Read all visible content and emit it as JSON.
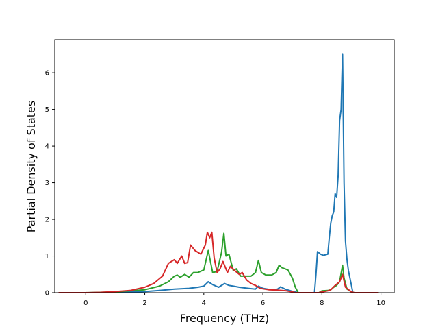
{
  "chart_data": {
    "type": "line",
    "title": "",
    "xlabel": "Frequency (THz)",
    "ylabel": "Partial Density of States",
    "xlim": [
      -1.05,
      10.45
    ],
    "ylim": [
      0,
      6.9
    ],
    "xticks": [
      0,
      2,
      4,
      6,
      8,
      10
    ],
    "yticks": [
      0,
      1,
      2,
      3,
      4,
      5,
      6
    ],
    "xtick_labels": [
      "0",
      "2",
      "4",
      "6",
      "8",
      "10"
    ],
    "ytick_labels": [
      "0",
      "1",
      "2",
      "3",
      "4",
      "5",
      "6"
    ],
    "grid": false,
    "legend": "none",
    "series": [
      {
        "color": "#1f77b4",
        "points": [
          [
            -0.9,
            0
          ],
          [
            0,
            0
          ],
          [
            1,
            0.01
          ],
          [
            2,
            0.03
          ],
          [
            2.5,
            0.06
          ],
          [
            3,
            0.1
          ],
          [
            3.5,
            0.12
          ],
          [
            3.8,
            0.15
          ],
          [
            4,
            0.18
          ],
          [
            4.15,
            0.3
          ],
          [
            4.3,
            0.22
          ],
          [
            4.5,
            0.15
          ],
          [
            4.7,
            0.25
          ],
          [
            4.85,
            0.2
          ],
          [
            5,
            0.18
          ],
          [
            5.2,
            0.15
          ],
          [
            5.5,
            0.12
          ],
          [
            5.75,
            0.1
          ],
          [
            5.85,
            0.18
          ],
          [
            6,
            0.12
          ],
          [
            6.3,
            0.08
          ],
          [
            6.5,
            0.1
          ],
          [
            6.6,
            0.16
          ],
          [
            6.75,
            0.1
          ],
          [
            7,
            0.04
          ],
          [
            7.2,
            0
          ],
          [
            7.75,
            0
          ],
          [
            7.8,
            0.5
          ],
          [
            7.85,
            1.12
          ],
          [
            7.95,
            1.05
          ],
          [
            8.05,
            1.02
          ],
          [
            8.2,
            1.05
          ],
          [
            8.25,
            1.5
          ],
          [
            8.3,
            1.9
          ],
          [
            8.35,
            2.1
          ],
          [
            8.4,
            2.2
          ],
          [
            8.45,
            2.7
          ],
          [
            8.5,
            2.6
          ],
          [
            8.55,
            3.2
          ],
          [
            8.6,
            4.7
          ],
          [
            8.65,
            5.0
          ],
          [
            8.7,
            6.5
          ],
          [
            8.75,
            3.0
          ],
          [
            8.8,
            1.4
          ],
          [
            8.85,
            0.9
          ],
          [
            8.9,
            0.6
          ],
          [
            9,
            0.2
          ],
          [
            9.05,
            0
          ],
          [
            9.9,
            0
          ]
        ]
      },
      {
        "color": "#2ca02c",
        "points": [
          [
            -0.9,
            0
          ],
          [
            0,
            0
          ],
          [
            1,
            0.02
          ],
          [
            2,
            0.08
          ],
          [
            2.5,
            0.18
          ],
          [
            2.8,
            0.3
          ],
          [
            3,
            0.45
          ],
          [
            3.1,
            0.48
          ],
          [
            3.2,
            0.42
          ],
          [
            3.35,
            0.5
          ],
          [
            3.5,
            0.42
          ],
          [
            3.65,
            0.55
          ],
          [
            3.8,
            0.55
          ],
          [
            4,
            0.62
          ],
          [
            4.15,
            1.15
          ],
          [
            4.3,
            0.55
          ],
          [
            4.45,
            0.58
          ],
          [
            4.6,
            1.1
          ],
          [
            4.68,
            1.62
          ],
          [
            4.75,
            1.0
          ],
          [
            4.85,
            1.05
          ],
          [
            5,
            0.6
          ],
          [
            5.1,
            0.65
          ],
          [
            5.25,
            0.45
          ],
          [
            5.4,
            0.45
          ],
          [
            5.6,
            0.45
          ],
          [
            5.75,
            0.55
          ],
          [
            5.85,
            0.88
          ],
          [
            5.95,
            0.55
          ],
          [
            6.1,
            0.48
          ],
          [
            6.3,
            0.48
          ],
          [
            6.45,
            0.55
          ],
          [
            6.55,
            0.75
          ],
          [
            6.65,
            0.68
          ],
          [
            6.85,
            0.62
          ],
          [
            7.0,
            0.4
          ],
          [
            7.1,
            0.15
          ],
          [
            7.2,
            0
          ],
          [
            7.9,
            0
          ],
          [
            8.0,
            0.05
          ],
          [
            8.2,
            0.06
          ],
          [
            8.3,
            0.08
          ],
          [
            8.4,
            0.15
          ],
          [
            8.5,
            0.2
          ],
          [
            8.6,
            0.3
          ],
          [
            8.7,
            0.75
          ],
          [
            8.75,
            0.4
          ],
          [
            8.85,
            0.1
          ],
          [
            9,
            0.02
          ],
          [
            9.1,
            0
          ],
          [
            9.9,
            0
          ]
        ]
      },
      {
        "color": "#d62728",
        "points": [
          [
            -0.9,
            0
          ],
          [
            0,
            0
          ],
          [
            0.5,
            0.01
          ],
          [
            1,
            0.03
          ],
          [
            1.5,
            0.06
          ],
          [
            2,
            0.15
          ],
          [
            2.3,
            0.25
          ],
          [
            2.6,
            0.45
          ],
          [
            2.8,
            0.8
          ],
          [
            3,
            0.9
          ],
          [
            3.1,
            0.8
          ],
          [
            3.25,
            1.0
          ],
          [
            3.35,
            0.8
          ],
          [
            3.45,
            0.82
          ],
          [
            3.55,
            1.3
          ],
          [
            3.7,
            1.15
          ],
          [
            3.9,
            1.05
          ],
          [
            4.05,
            1.3
          ],
          [
            4.12,
            1.65
          ],
          [
            4.2,
            1.5
          ],
          [
            4.27,
            1.65
          ],
          [
            4.35,
            0.95
          ],
          [
            4.45,
            0.55
          ],
          [
            4.55,
            0.65
          ],
          [
            4.65,
            0.85
          ],
          [
            4.8,
            0.55
          ],
          [
            4.9,
            0.72
          ],
          [
            5.05,
            0.6
          ],
          [
            5.2,
            0.5
          ],
          [
            5.3,
            0.55
          ],
          [
            5.45,
            0.35
          ],
          [
            5.6,
            0.25
          ],
          [
            5.75,
            0.2
          ],
          [
            5.9,
            0.12
          ],
          [
            6.2,
            0.08
          ],
          [
            6.5,
            0.07
          ],
          [
            6.8,
            0.05
          ],
          [
            7,
            0.02
          ],
          [
            7.1,
            0
          ],
          [
            7.9,
            0
          ],
          [
            8.0,
            0.02
          ],
          [
            8.2,
            0.05
          ],
          [
            8.3,
            0.08
          ],
          [
            8.45,
            0.2
          ],
          [
            8.6,
            0.3
          ],
          [
            8.7,
            0.5
          ],
          [
            8.8,
            0.15
          ],
          [
            9,
            0.02
          ],
          [
            9.1,
            0
          ],
          [
            9.9,
            0
          ]
        ]
      }
    ]
  }
}
